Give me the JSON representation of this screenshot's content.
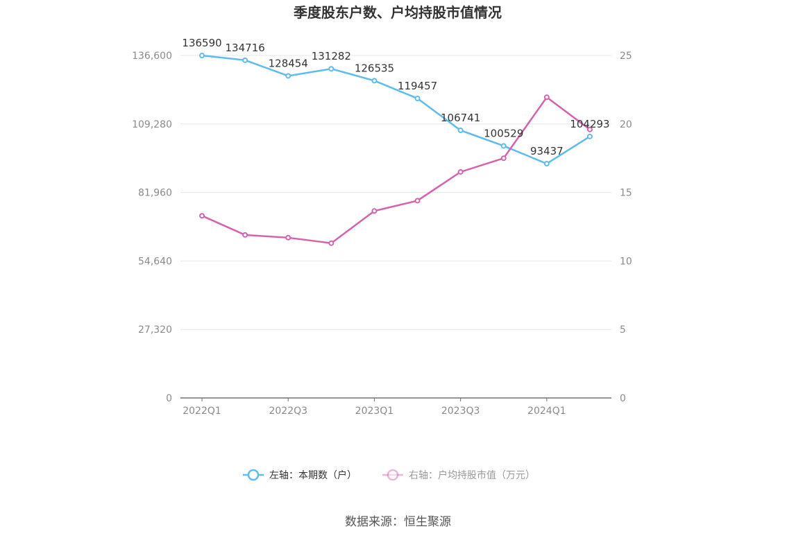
{
  "chart_data": {
    "type": "line",
    "title": "季度股东户数、户均持股市值情况",
    "categories": [
      "2022Q1",
      "2022Q2",
      "2022Q3",
      "2022Q4",
      "2023Q1",
      "2023Q2",
      "2023Q3",
      "2023Q4",
      "2024Q1",
      "2024Q2"
    ],
    "x_tick_labels": [
      "2022Q1",
      "2022Q3",
      "2023Q1",
      "2023Q3",
      "2024Q1"
    ],
    "left_axis": {
      "ticks": [
        "0",
        "27,320",
        "54,640",
        "81,960",
        "109,280",
        "136,600"
      ],
      "ylim": [
        0,
        136600
      ]
    },
    "right_axis": {
      "ticks": [
        "0",
        "5",
        "10",
        "15",
        "20",
        "25"
      ],
      "ylim": [
        0,
        25
      ]
    },
    "series": [
      {
        "name": "左轴：本期数（户）",
        "axis": "left",
        "color": "#5bbcf0",
        "values": [
          136590,
          134716,
          128454,
          131282,
          126535,
          119457,
          106741,
          100529,
          93437,
          104293
        ],
        "labels": [
          "136590",
          "134716",
          "128454",
          "131282",
          "126535",
          "119457",
          "106741",
          "100529",
          "93437",
          "104293"
        ]
      },
      {
        "name": "右轴：户均持股市值（万元）",
        "axis": "right",
        "color": "#d462ad",
        "values": [
          13.3,
          11.9,
          11.7,
          11.3,
          13.65,
          14.4,
          16.5,
          17.5,
          21.95,
          19.6
        ]
      }
    ],
    "grid": true,
    "legend_position": "bottom"
  },
  "source": "数据来源：恒生聚源"
}
